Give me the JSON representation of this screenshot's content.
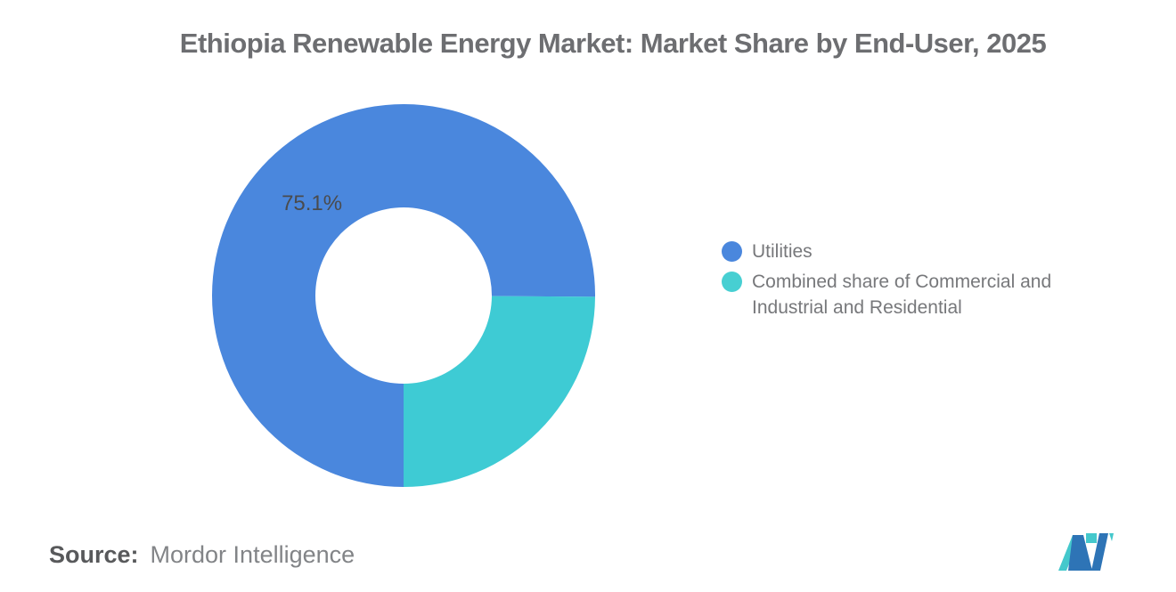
{
  "title": "Ethiopia Renewable Energy Market: Market Share by End-User, 2025",
  "chart_data": {
    "type": "pie",
    "subtype": "donut",
    "title": "Ethiopia Renewable Energy Market: Market Share by End-User, 2025",
    "unit": "%",
    "start_angle_deg_clockwise_from_east": 90,
    "legend_position": "right",
    "slices": [
      {
        "label": "Utilities",
        "value": 75.1,
        "color": "#4a87dd",
        "data_label": "75.1%"
      },
      {
        "label": "Combined share of Commercial and Industrial and Residential",
        "value": 24.9,
        "color": "#3ecbd4",
        "data_label": ""
      }
    ]
  },
  "legend": {
    "items": [
      {
        "label": "Utilities",
        "color": "#4a87dd"
      },
      {
        "label": "Combined share of Commercial and Industrial and Residential",
        "color": "#47cfd2"
      }
    ]
  },
  "source": {
    "label": "Source:",
    "value": "Mordor Intelligence"
  },
  "logo": {
    "name": "Mordor Intelligence",
    "blue": "#2e74b6",
    "teal": "#44c8cc"
  }
}
